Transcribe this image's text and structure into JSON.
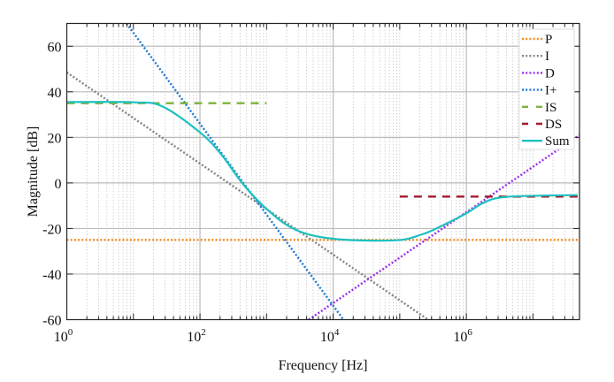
{
  "chart_data": {
    "type": "line",
    "xlabel": "Frequency [Hz]",
    "ylabel": "Magnitude [dB]",
    "xscale": "log",
    "xlim": [
      1,
      50000000
    ],
    "ylim": [
      -60,
      70
    ],
    "x_ticks": [
      {
        "base": "10",
        "exp": "0",
        "value": 1
      },
      {
        "base": "10",
        "exp": "2",
        "value": 100
      },
      {
        "base": "10",
        "exp": "4",
        "value": 10000
      },
      {
        "base": "10",
        "exp": "6",
        "value": 1000000
      }
    ],
    "y_ticks": [
      "60",
      "40",
      "20",
      "0",
      "-20",
      "-40",
      "-60"
    ],
    "y_tick_values": [
      60,
      40,
      20,
      0,
      -20,
      -40,
      -60
    ],
    "grid": true,
    "legend_placement": "top-right",
    "series": [
      {
        "name": "P",
        "color": "#f28a1e",
        "style": "dotted",
        "x": [
          1,
          50000000
        ],
        "y": [
          -25,
          -25
        ]
      },
      {
        "name": "I",
        "color": "#858585",
        "style": "dotted",
        "x": [
          1,
          400000
        ],
        "y": [
          48.5,
          -63.5
        ]
      },
      {
        "name": "D",
        "color": "#9a2ef0",
        "style": "dotted",
        "x": [
          4300,
          50000000
        ],
        "y": [
          -60,
          21
        ]
      },
      {
        "name": "I+",
        "color": "#1f78d1",
        "style": "dotted",
        "x": [
          7.9,
          32000
        ],
        "y": [
          70,
          -74
        ]
      },
      {
        "name": "IS",
        "color": "#7db33c",
        "style": "dashed",
        "x": [
          1,
          1000
        ],
        "y": [
          35,
          35
        ]
      },
      {
        "name": "DS",
        "color": "#a3192d",
        "style": "dashed",
        "x": [
          100000,
          50000000
        ],
        "y": [
          -6,
          -6
        ]
      },
      {
        "name": "Sum",
        "color": "#1ec0c0",
        "style": "solid",
        "x": [
          1,
          10,
          27,
          100,
          209,
          427,
          955,
          2630,
          10000,
          85000,
          214000,
          389000,
          977000,
          1820000,
          4070000,
          46800000
        ],
        "y": [
          35.5,
          35.4,
          33.6,
          22.2,
          12.5,
          0.1,
          -10.9,
          -20.3,
          -24.5,
          -25.2,
          -22.6,
          -19.4,
          -13.5,
          -8.7,
          -6.1,
          -5.3
        ]
      }
    ]
  }
}
